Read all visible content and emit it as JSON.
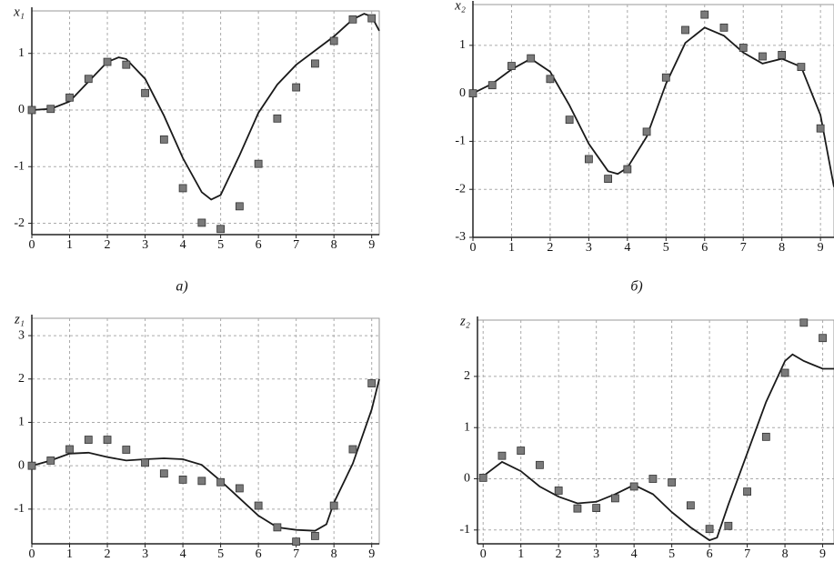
{
  "chart_data": [
    {
      "type": "line",
      "ylabel": "x₁",
      "caption": "а)",
      "xlim": [
        0,
        9.2
      ],
      "ylim": [
        -2.2,
        1.75
      ],
      "xticks": [
        0,
        1,
        2,
        3,
        4,
        5,
        6,
        7,
        8,
        9
      ],
      "yticks": [
        -2,
        -1,
        0,
        1
      ],
      "grid": true,
      "series": [
        {
          "type": "line",
          "color": "#1a1a1a",
          "x": [
            0,
            0.5,
            1,
            1.5,
            2,
            2.3,
            2.5,
            3,
            3.5,
            4,
            4.5,
            4.75,
            5,
            5.5,
            6,
            6.5,
            7,
            7.5,
            8,
            8.5,
            8.8,
            9,
            9.2
          ],
          "values": [
            0,
            0.02,
            0.15,
            0.5,
            0.85,
            0.93,
            0.9,
            0.55,
            -0.1,
            -0.85,
            -1.45,
            -1.58,
            -1.5,
            -0.8,
            -0.05,
            0.45,
            0.8,
            1.05,
            1.3,
            1.6,
            1.7,
            1.65,
            1.4
          ]
        },
        {
          "type": "scatter",
          "color": "#7a7a7a",
          "x": [
            0,
            0.5,
            1,
            1.5,
            2,
            2.5,
            3,
            3.5,
            4,
            4.5,
            5,
            5.5,
            6,
            6.5,
            7,
            7.5,
            8,
            8.5,
            9
          ],
          "values": [
            0,
            0.02,
            0.22,
            0.55,
            0.85,
            0.8,
            0.3,
            -0.52,
            -1.38,
            -1.99,
            -2.1,
            -1.7,
            -0.95,
            -0.15,
            0.4,
            0.82,
            1.22,
            1.6,
            1.62
          ]
        }
      ]
    },
    {
      "type": "line",
      "ylabel": "x₂",
      "caption": "б)",
      "xlim": [
        0,
        9.35
      ],
      "ylim": [
        -3,
        1.85
      ],
      "xticks": [
        0,
        1,
        2,
        3,
        4,
        5,
        6,
        7,
        8,
        9
      ],
      "yticks": [
        -3,
        -2,
        -1,
        0,
        1
      ],
      "grid": true,
      "series": [
        {
          "type": "line",
          "color": "#1a1a1a",
          "x": [
            0,
            0.5,
            1,
            1.5,
            2,
            2.5,
            3,
            3.5,
            3.75,
            4,
            4.5,
            5,
            5.5,
            6,
            6.5,
            7,
            7.5,
            8,
            8.5,
            9,
            9.35
          ],
          "values": [
            0,
            0.2,
            0.5,
            0.72,
            0.45,
            -0.25,
            -1.05,
            -1.62,
            -1.68,
            -1.55,
            -0.9,
            0.2,
            1.05,
            1.37,
            1.2,
            0.85,
            0.62,
            0.72,
            0.55,
            -0.45,
            -1.95
          ]
        },
        {
          "type": "scatter",
          "color": "#7a7a7a",
          "x": [
            0,
            0.5,
            1,
            1.5,
            2,
            2.5,
            3,
            3.5,
            4,
            4.5,
            5,
            5.5,
            6,
            6.5,
            7,
            7.5,
            8,
            8.5,
            9
          ],
          "values": [
            0,
            0.17,
            0.57,
            0.73,
            0.3,
            -0.55,
            -1.37,
            -1.78,
            -1.58,
            -0.8,
            0.33,
            1.32,
            1.64,
            1.37,
            0.95,
            0.77,
            0.8,
            0.55,
            -0.73
          ]
        }
      ]
    },
    {
      "type": "line",
      "ylabel": "z₁",
      "xlim": [
        0,
        9.2
      ],
      "ylim": [
        -1.8,
        3.4
      ],
      "xticks": [
        0,
        1,
        2,
        3,
        4,
        5,
        6,
        7,
        8,
        9
      ],
      "yticks": [
        -1,
        0,
        1,
        2,
        3
      ],
      "grid": true,
      "series": [
        {
          "type": "line",
          "color": "#1a1a1a",
          "x": [
            0,
            0.5,
            1,
            1.5,
            2,
            2.5,
            3,
            3.5,
            4,
            4.5,
            5,
            5.5,
            6,
            6.5,
            7,
            7.5,
            7.8,
            8,
            8.5,
            9,
            9.2
          ],
          "values": [
            0,
            0.12,
            0.28,
            0.3,
            0.2,
            0.12,
            0.15,
            0.17,
            0.15,
            0.02,
            -0.35,
            -0.75,
            -1.15,
            -1.42,
            -1.48,
            -1.5,
            -1.35,
            -0.85,
            0.05,
            1.3,
            2.0
          ]
        },
        {
          "type": "scatter",
          "color": "#7a7a7a",
          "x": [
            0,
            0.5,
            1,
            1.5,
            2,
            2.5,
            3,
            3.5,
            4,
            4.5,
            5,
            5.5,
            6,
            6.5,
            7,
            7.5,
            8,
            8.5,
            9
          ],
          "values": [
            0,
            0.12,
            0.38,
            0.6,
            0.6,
            0.37,
            0.07,
            -0.18,
            -0.32,
            -0.35,
            -0.38,
            -0.52,
            -0.92,
            -1.42,
            -1.75,
            -1.62,
            -0.92,
            0.38,
            1.9
          ]
        }
      ]
    },
    {
      "type": "line",
      "ylabel": "z₂",
      "xlim": [
        -0.15,
        9.3
      ],
      "ylim": [
        -1.27,
        3.1
      ],
      "xticks": [
        0,
        1,
        2,
        3,
        4,
        5,
        6,
        7,
        8,
        9
      ],
      "yticks": [
        -1,
        0,
        1,
        2
      ],
      "grid": true,
      "series": [
        {
          "type": "line",
          "color": "#1a1a1a",
          "x": [
            0,
            0.5,
            1,
            1.5,
            2,
            2.5,
            3,
            3.5,
            4,
            4.5,
            5,
            5.5,
            6,
            6.2,
            6.5,
            7,
            7.5,
            8,
            8.2,
            8.5,
            9,
            9.3
          ],
          "values": [
            0.05,
            0.33,
            0.15,
            -0.15,
            -0.35,
            -0.48,
            -0.45,
            -0.3,
            -0.12,
            -0.3,
            -0.65,
            -0.95,
            -1.2,
            -1.15,
            -0.5,
            0.5,
            1.5,
            2.3,
            2.43,
            2.3,
            2.15,
            2.15
          ]
        },
        {
          "type": "scatter",
          "color": "#7a7a7a",
          "x": [
            0,
            0.5,
            1,
            1.5,
            2,
            2.5,
            3,
            3.5,
            4,
            4.5,
            5,
            5.5,
            6,
            6.5,
            7,
            7.5,
            8,
            8.5,
            9
          ],
          "values": [
            0.02,
            0.45,
            0.55,
            0.27,
            -0.23,
            -0.58,
            -0.57,
            -0.38,
            -0.15,
            0,
            -0.07,
            -0.52,
            -0.98,
            -0.92,
            -0.25,
            0.82,
            2.07,
            3.05,
            2.75
          ]
        }
      ]
    }
  ]
}
